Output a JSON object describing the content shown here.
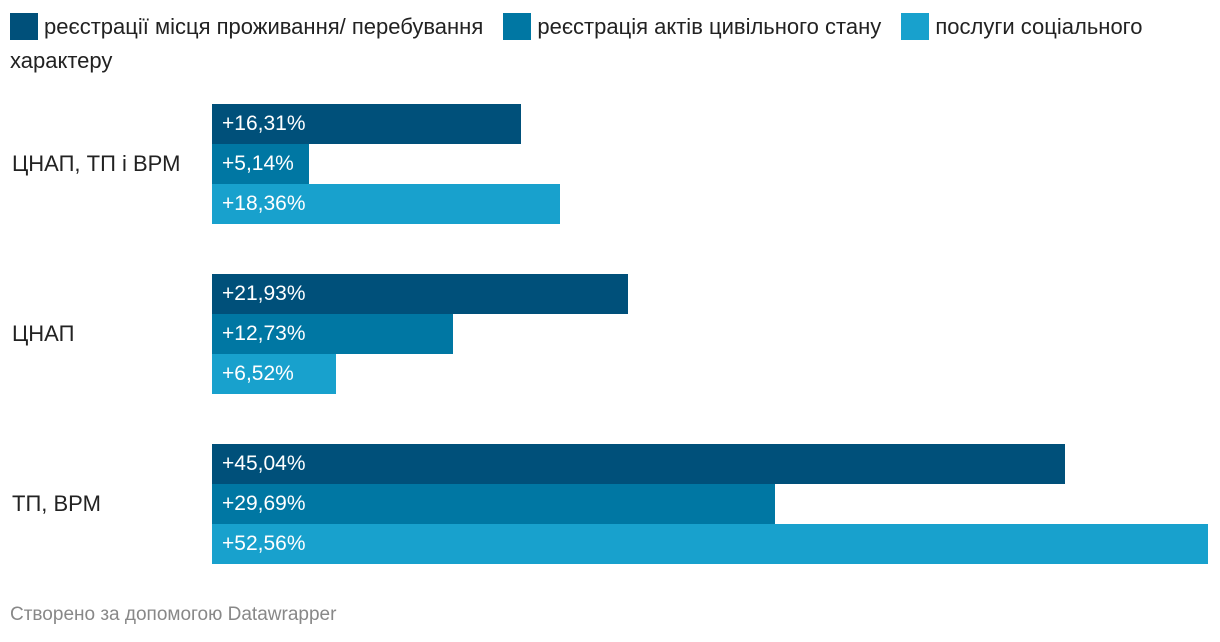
{
  "chart_data": {
    "type": "bar",
    "orientation": "horizontal",
    "categories": [
      "ЦНАП, ТП і ВРМ",
      "ЦНАП",
      "ТП, ВРМ"
    ],
    "series": [
      {
        "name": "реєстрації місця проживання/ перебування",
        "color": "#00507a",
        "values": [
          16.31,
          21.93,
          45.04
        ],
        "labels": [
          "+16,31%",
          "+21,93%",
          "+45,04%"
        ]
      },
      {
        "name": "реєстрація актів цивільного стану",
        "color": "#0077a3",
        "values": [
          5.14,
          12.73,
          29.69
        ],
        "labels": [
          "+5,14%",
          "+12,73%",
          "+29,69%"
        ]
      },
      {
        "name": "послуги соціального характеру",
        "color": "#18a1cd",
        "values": [
          18.36,
          6.52,
          52.56
        ],
        "labels": [
          "+18,36%",
          "+6,52%",
          "+52,56%"
        ]
      }
    ],
    "xlim": [
      0,
      52.56
    ],
    "legend_position": "top",
    "grid": false
  },
  "footer": {
    "credit": "Створено за допомогою Datawrapper"
  }
}
